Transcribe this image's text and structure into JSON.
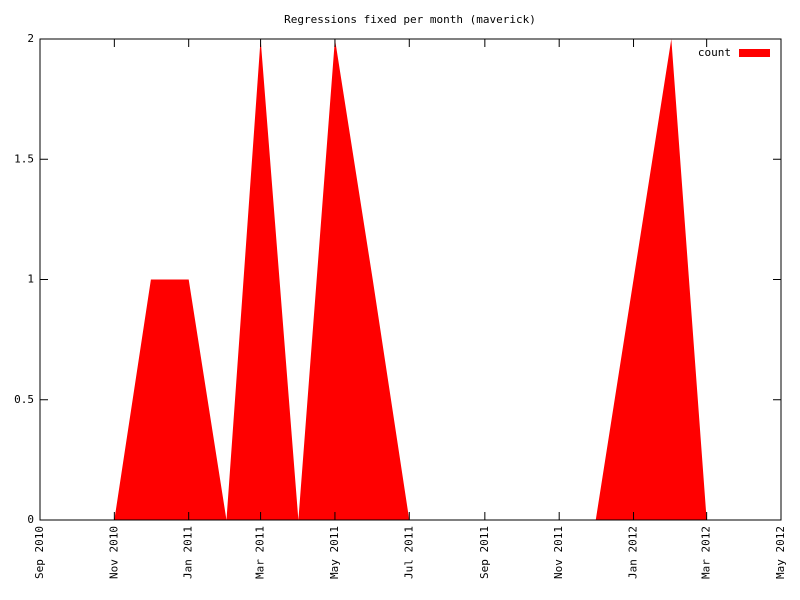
{
  "chart_data": {
    "type": "area",
    "title": "Regressions fixed per month (maverick)",
    "x": [
      "2010-11",
      "2010-12",
      "2011-01",
      "2011-02",
      "2011-03",
      "2011-04",
      "2011-05",
      "2011-06",
      "2011-07",
      "2011-08",
      "2011-09",
      "2011-10",
      "2011-11",
      "2011-12",
      "2012-01",
      "2012-02",
      "2012-03"
    ],
    "series": [
      {
        "name": "count",
        "color": "#ff0000",
        "values": [
          0,
          1,
          1,
          0,
          2,
          0,
          2,
          1,
          0,
          0,
          0,
          0,
          0,
          0,
          1,
          2,
          0
        ]
      }
    ],
    "xlim": [
      "2010-09",
      "2012-05"
    ],
    "xticks": [
      {
        "value": "2010-09",
        "label": "Sep 2010"
      },
      {
        "value": "2010-11",
        "label": "Nov 2010"
      },
      {
        "value": "2011-01",
        "label": "Jan 2011"
      },
      {
        "value": "2011-03",
        "label": "Mar 2011"
      },
      {
        "value": "2011-05",
        "label": "May 2011"
      },
      {
        "value": "2011-07",
        "label": "Jul 2011"
      },
      {
        "value": "2011-09",
        "label": "Sep 2011"
      },
      {
        "value": "2011-11",
        "label": "Nov 2011"
      },
      {
        "value": "2012-01",
        "label": "Jan 2012"
      },
      {
        "value": "2012-03",
        "label": "Mar 2012"
      },
      {
        "value": "2012-05",
        "label": "May 2012"
      }
    ],
    "ylim": [
      0,
      2
    ],
    "yticks": [
      0,
      0.5,
      1,
      1.5,
      2
    ],
    "grid": false,
    "legend": "top-right"
  }
}
